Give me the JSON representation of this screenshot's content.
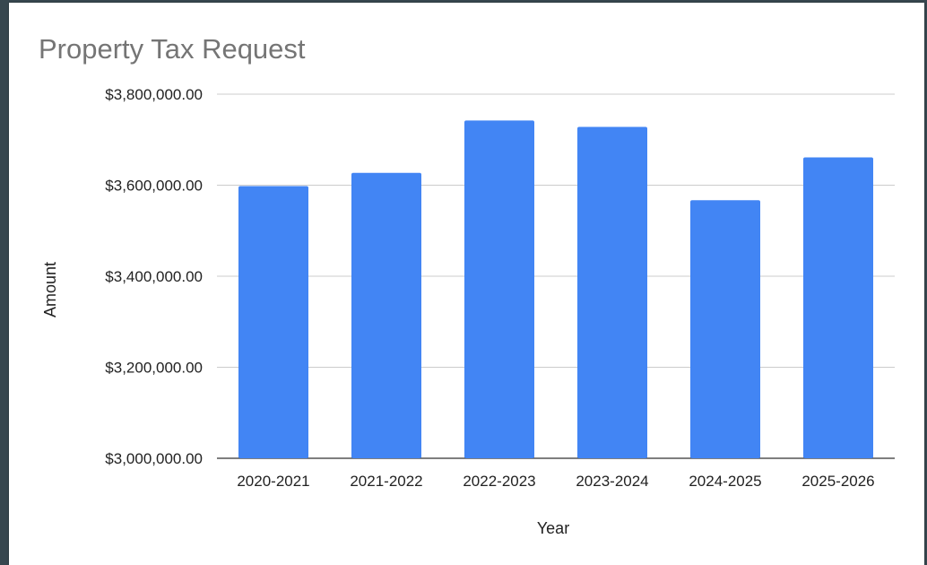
{
  "colors": {
    "bar": "#4285f4",
    "grid": "#cccccc",
    "baseline": "#333333",
    "title": "#757575",
    "frame_background": "#37474f"
  },
  "chart_data": {
    "type": "bar",
    "title": "Property Tax Request",
    "xlabel": "Year",
    "ylabel": "Amount",
    "categories": [
      "2020-2021",
      "2021-2022",
      "2022-2023",
      "2023-2024",
      "2024-2025",
      "2025-2026"
    ],
    "values": [
      3598000,
      3627000,
      3742000,
      3728000,
      3567000,
      3661000
    ],
    "ylim": [
      3000000,
      3800000
    ],
    "yticks": [
      3000000,
      3200000,
      3400000,
      3600000,
      3800000
    ],
    "ytick_labels": [
      "$3,000,000.00",
      "$3,200,000.00",
      "$3,400,000.00",
      "$3,600,000.00",
      "$3,800,000.00"
    ],
    "grid": true,
    "legend": "none"
  }
}
